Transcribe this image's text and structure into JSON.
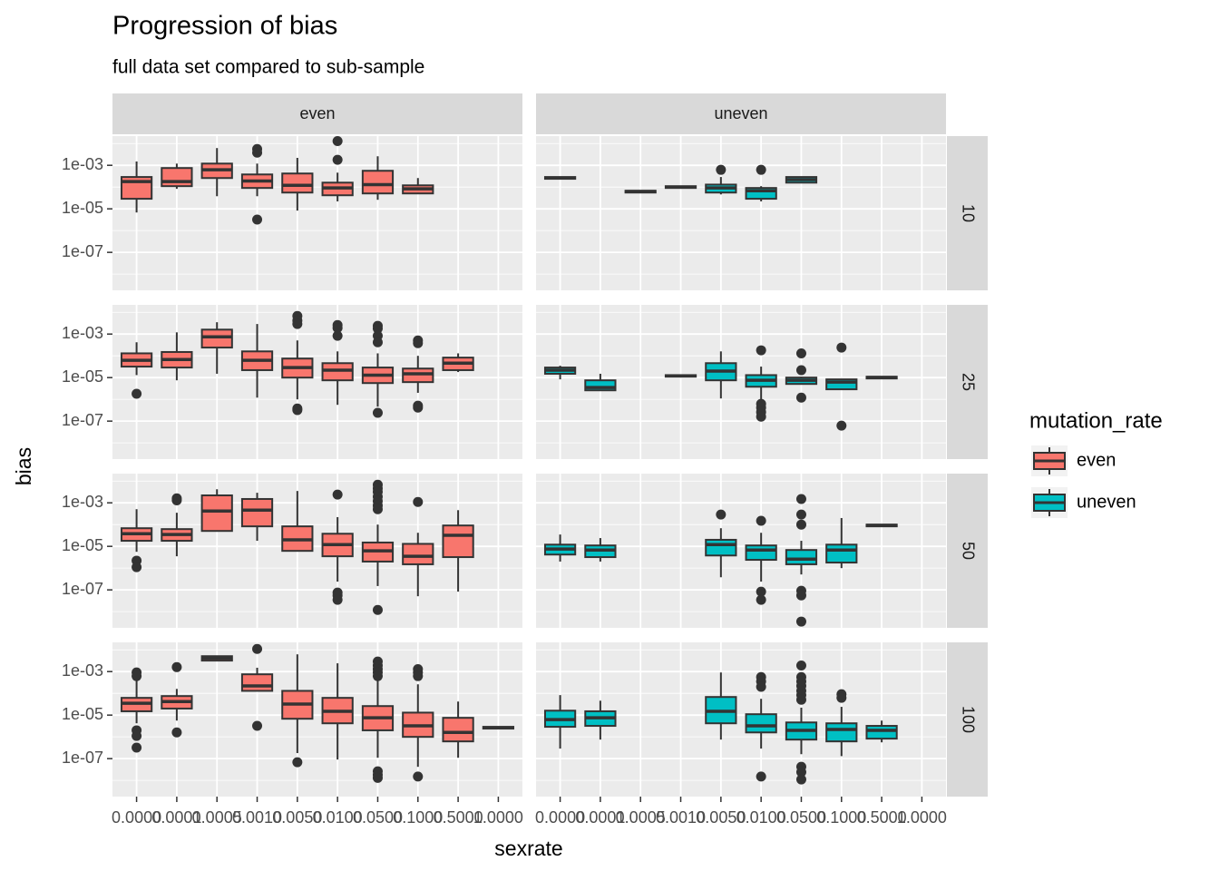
{
  "chart_data": {
    "type": "boxplot",
    "title": "Progression of bias",
    "subtitle": "full data set compared to sub-sample",
    "xlabel": "sexrate",
    "ylabel": "bias",
    "legend_title": "mutation_rate",
    "legend_position": "right",
    "log_y": true,
    "grid": true,
    "minor_grid": true,
    "categories": [
      "0.0000",
      "0.0001",
      "0.0005",
      "0.0010",
      "0.0050",
      "0.0100",
      "0.0500",
      "0.1000",
      "0.5000",
      "1.0000"
    ],
    "ylim": [
      1.8e-09,
      0.022
    ],
    "yticks": [
      {
        "value": 0.001,
        "label": "1e-03"
      },
      {
        "value": 1e-05,
        "label": "1e-05"
      },
      {
        "value": 1e-07,
        "label": "1e-07"
      }
    ],
    "series": [
      {
        "name": "even",
        "color": "#f8766d"
      },
      {
        "name": "uneven",
        "color": "#00bfc4"
      }
    ],
    "facet_cols": [
      "even",
      "uneven"
    ],
    "facet_rows": [
      {
        "label": "10",
        "panels": [
          [
            {
              "low": 6.8e-06,
              "q1": 2.9e-05,
              "median": 0.00018,
              "q3": 0.00029,
              "high": 0.0015
            },
            {
              "low": 8.3e-05,
              "q1": 0.00011,
              "median": 0.00018,
              "q3": 0.00075,
              "high": 0.0012
            },
            {
              "low": 3.8e-05,
              "q1": 0.00026,
              "median": 0.00062,
              "q3": 0.0012,
              "high": 0.0062
            },
            {
              "low": 3.8e-05,
              "q1": 9.1e-05,
              "median": 0.00019,
              "q3": 0.00038,
              "high": 0.0012,
              "outliers": [
                0.0056,
                0.0038,
                3.2e-06
              ]
            },
            {
              "low": 8.3e-06,
              "q1": 5.6e-05,
              "median": 0.00012,
              "q3": 0.00042,
              "high": 0.0022
            },
            {
              "low": 2.2e-05,
              "q1": 4.2e-05,
              "median": 9.1e-05,
              "q3": 0.00016,
              "high": 0.00046,
              "outliers": [
                0.013,
                0.0018
              ]
            },
            {
              "low": 2.6e-05,
              "q1": 5.1e-05,
              "median": 0.00013,
              "q3": 0.00056,
              "high": 0.0026
            },
            {
              "low": 5.1e-05,
              "q1": 5.1e-05,
              "median": 8.3e-05,
              "q3": 0.00012,
              "high": 0.00026
            },
            null,
            null
          ],
          [
            {
              "low": 0.00024,
              "q1": 0.00024,
              "median": 0.00026,
              "q3": 0.00029,
              "high": 0.00029
            },
            null,
            {
              "low": 5.6e-05,
              "q1": 5.6e-05,
              "median": 6.2e-05,
              "q3": 6.8e-05,
              "high": 6.8e-05
            },
            {
              "low": 9.1e-05,
              "q1": 9.1e-05,
              "median": 0.0001,
              "q3": 0.00011,
              "high": 0.00011
            },
            {
              "low": 4.6e-05,
              "q1": 5.6e-05,
              "median": 9.1e-05,
              "q3": 0.00013,
              "high": 0.00029,
              "outliers": [
                0.00062
              ]
            },
            {
              "low": 2.2e-05,
              "q1": 2.9e-05,
              "median": 6.8e-05,
              "q3": 9.1e-05,
              "high": 0.00011,
              "outliers": [
                0.00062
              ]
            },
            {
              "low": 0.00016,
              "q1": 0.00016,
              "median": 0.00022,
              "q3": 0.00029,
              "high": 0.00029
            },
            null,
            null,
            null
          ]
        ]
      },
      {
        "label": "25",
        "panels": [
          [
            {
              "low": 1.3e-05,
              "q1": 3.2e-05,
              "median": 6.2e-05,
              "q3": 0.00013,
              "high": 0.00042,
              "outliers": [
                1.8e-06
              ]
            },
            {
              "low": 7.5e-06,
              "q1": 2.9e-05,
              "median": 6.8e-05,
              "q3": 0.00015,
              "high": 0.0012
            },
            {
              "low": 1.5e-05,
              "q1": 0.00024,
              "median": 0.00075,
              "q3": 0.0016,
              "high": 0.0035
            },
            {
              "low": 1.2e-06,
              "q1": 2.2e-05,
              "median": 6.2e-05,
              "q3": 0.00016,
              "high": 0.0029
            },
            {
              "low": 1e-06,
              "q1": 1e-05,
              "median": 2.9e-05,
              "q3": 7.5e-05,
              "high": 0.00051,
              "outliers": [
                0.0068,
                0.0042,
                0.0029,
                3.8e-07,
                3.2e-07
              ]
            },
            {
              "low": 5.6e-07,
              "q1": 7.5e-06,
              "median": 2.2e-05,
              "q3": 4.6e-05,
              "high": 0.00016,
              "outliers": [
                0.0026,
                0.0019,
                0.00083
              ]
            },
            {
              "low": 4.6e-07,
              "q1": 5.6e-06,
              "median": 1.3e-05,
              "q3": 2.9e-05,
              "high": 0.00013,
              "outliers": [
                0.0024,
                0.0018,
                0.00083,
                0.00042,
                2.4e-07
              ]
            },
            {
              "low": 2e-06,
              "q1": 6.2e-06,
              "median": 1.5e-05,
              "q3": 2.6e-05,
              "high": 0.0001,
              "outliers": [
                0.00051,
                0.00038,
                5.1e-07,
                4.2e-07
              ]
            },
            {
              "low": 1.8e-05,
              "q1": 2.2e-05,
              "median": 4.6e-05,
              "q3": 8.3e-05,
              "high": 0.00013
            },
            null
          ],
          [
            {
              "low": 8.3e-06,
              "q1": 1.5e-05,
              "median": 2.2e-05,
              "q3": 2.9e-05,
              "high": 3.5e-05
            },
            {
              "low": 2.6e-06,
              "q1": 2.6e-06,
              "median": 3.5e-06,
              "q3": 7.5e-06,
              "high": 1.5e-05
            },
            null,
            {
              "low": 1.1e-05,
              "q1": 1.1e-05,
              "median": 1.2e-05,
              "q3": 1.3e-05,
              "high": 1.3e-05
            },
            {
              "low": 1.1e-06,
              "q1": 7.5e-06,
              "median": 2e-05,
              "q3": 4.6e-05,
              "high": 0.00016
            },
            {
              "low": 1e-06,
              "q1": 3.8e-06,
              "median": 7.5e-06,
              "q3": 1.3e-05,
              "high": 3.2e-05,
              "outliers": [
                0.00018,
                6.2e-07,
                4.2e-07,
                2.6e-07,
                1.6e-07
              ]
            },
            {
              "low": 5.1e-06,
              "q1": 5.1e-06,
              "median": 7.5e-06,
              "q3": 1e-05,
              "high": 1.1e-05,
              "outliers": [
                0.00013,
                2.2e-05,
                1.2e-06
              ]
            },
            {
              "low": 2.9e-06,
              "q1": 2.9e-06,
              "median": 6.2e-06,
              "q3": 8.3e-06,
              "high": 8.3e-06,
              "outliers": [
                0.00024,
                6.2e-08
              ]
            },
            {
              "low": 9.1e-06,
              "q1": 9.1e-06,
              "median": 1e-05,
              "q3": 1.1e-05,
              "high": 1.1e-05
            },
            null
          ]
        ]
      },
      {
        "label": "50",
        "panels": [
          [
            {
              "low": 5.6e-06,
              "q1": 1.8e-05,
              "median": 3.8e-05,
              "q3": 6.8e-05,
              "high": 0.00051,
              "outliers": [
                2.2e-06,
                1.1e-06
              ]
            },
            {
              "low": 3.5e-06,
              "q1": 1.8e-05,
              "median": 3.5e-05,
              "q3": 6.2e-05,
              "high": 0.00035,
              "outliers": [
                0.0016,
                0.0013
              ]
            },
            {
              "low": 5.1e-05,
              "q1": 5.1e-05,
              "median": 0.00042,
              "q3": 0.0022,
              "high": 0.0042
            },
            {
              "low": 1.8e-05,
              "q1": 8.3e-05,
              "median": 0.00046,
              "q3": 0.0015,
              "high": 0.0029
            },
            {
              "low": 6.2e-06,
              "q1": 6.2e-06,
              "median": 2e-05,
              "q3": 8.3e-05,
              "high": 0.0035
            },
            {
              "low": 2.4e-07,
              "q1": 3.5e-06,
              "median": 1.2e-05,
              "q3": 3.8e-05,
              "high": 0.00022,
              "outliers": [
                0.0024,
                7.5e-08,
                5.6e-08,
                3.5e-08
              ]
            },
            {
              "low": 1.5e-07,
              "q1": 2e-06,
              "median": 6.2e-06,
              "q3": 1.5e-05,
              "high": 0.0001,
              "outliers": [
                0.0068,
                0.0046,
                0.0032,
                0.0019,
                0.0012,
                0.00075,
                0.00051,
                1.2e-08
              ]
            },
            {
              "low": 5.1e-08,
              "q1": 1.5e-06,
              "median": 3.5e-06,
              "q3": 1.3e-05,
              "high": 4.2e-05,
              "outliers": [
                0.0011
              ]
            },
            {
              "low": 8.3e-08,
              "q1": 3.2e-06,
              "median": 3.2e-05,
              "q3": 9.1e-05,
              "high": 0.00046
            },
            null
          ],
          [
            {
              "low": 2e-06,
              "q1": 4.2e-06,
              "median": 7.5e-06,
              "q3": 1.2e-05,
              "high": 3.5e-05
            },
            {
              "low": 2e-06,
              "q1": 3.2e-06,
              "median": 6.8e-06,
              "q3": 1.1e-05,
              "high": 2.4e-05
            },
            null,
            null,
            {
              "low": 3.8e-07,
              "q1": 3.8e-06,
              "median": 1.2e-05,
              "q3": 2e-05,
              "high": 6.8e-05,
              "outliers": [
                0.00029
              ]
            },
            {
              "low": 2.4e-07,
              "q1": 2.4e-06,
              "median": 6.8e-06,
              "q3": 1.1e-05,
              "high": 4.2e-05,
              "outliers": [
                0.00015,
                8.3e-08,
                3.5e-08
              ]
            },
            {
              "low": 5.1e-07,
              "q1": 1.5e-06,
              "median": 2.6e-06,
              "q3": 6.8e-06,
              "high": 1.8e-05,
              "outliers": [
                0.0015,
                0.00029,
                0.0001,
                9.1e-08,
                5.6e-08,
                3.5e-09
              ]
            },
            {
              "low": 1e-06,
              "q1": 1.8e-06,
              "median": 6.8e-06,
              "q3": 1.2e-05,
              "high": 0.0002
            },
            {
              "low": 8.3e-05,
              "q1": 8.3e-05,
              "median": 9.1e-05,
              "q3": 0.0001,
              "high": 0.0001
            },
            null
          ]
        ]
      },
      {
        "label": "100",
        "panels": [
          [
            {
              "low": 4.2e-06,
              "q1": 1.5e-05,
              "median": 3.5e-05,
              "q3": 6.2e-05,
              "high": 0.00038,
              "outliers": [
                0.00091,
                0.00062,
                2e-06,
                1.1e-06,
                3.2e-07
              ]
            },
            {
              "low": 5.6e-06,
              "q1": 2e-05,
              "median": 4.2e-05,
              "q3": 7.5e-05,
              "high": 0.00016,
              "outliers": [
                0.0016,
                1.6e-06
              ]
            },
            {
              "low": 0.0032,
              "q1": 0.0032,
              "median": 0.0042,
              "q3": 0.0051,
              "high": 0.0051
            },
            {
              "low": 0.00013,
              "q1": 0.00013,
              "median": 0.00022,
              "q3": 0.00075,
              "high": 0.0015,
              "outliers": [
                0.011,
                3.2e-06
              ]
            },
            {
              "low": 1.8e-07,
              "q1": 6.8e-06,
              "median": 3.2e-05,
              "q3": 0.00013,
              "high": 0.0062,
              "outliers": [
                6.8e-08
              ]
            },
            {
              "low": 9.1e-08,
              "q1": 4.2e-06,
              "median": 1.5e-05,
              "q3": 6.2e-05,
              "high": 0.0024
            },
            {
              "low": 1.1e-07,
              "q1": 2e-06,
              "median": 7.5e-06,
              "q3": 2.6e-05,
              "high": 0.00042,
              "outliers": [
                0.0029,
                0.0019,
                0.0013,
                0.00091,
                0.00062,
                2.6e-08,
                1.8e-08,
                1.3e-08
              ]
            },
            {
              "low": 4.2e-08,
              "q1": 1e-06,
              "median": 3.2e-06,
              "q3": 1.3e-05,
              "high": 0.00026,
              "outliers": [
                0.0013,
                0.00091,
                0.00062,
                1.5e-08
              ]
            },
            {
              "low": 1.1e-07,
              "q1": 6.2e-07,
              "median": 1.6e-06,
              "q3": 7.5e-06,
              "high": 4.2e-05
            },
            {
              "low": 2.4e-06,
              "q1": 2.4e-06,
              "median": 2.6e-06,
              "q3": 2.9e-06,
              "high": 2.9e-06
            }
          ],
          [
            {
              "low": 2.9e-07,
              "q1": 2.9e-06,
              "median": 6.2e-06,
              "q3": 1.6e-05,
              "high": 8.3e-05
            },
            {
              "low": 7.5e-07,
              "q1": 3.2e-06,
              "median": 7.5e-06,
              "q3": 1.5e-05,
              "high": 4.6e-05
            },
            null,
            null,
            {
              "low": 7.5e-07,
              "q1": 4.2e-06,
              "median": 1.5e-05,
              "q3": 6.8e-05,
              "high": 0.00091
            },
            {
              "low": 2.9e-07,
              "q1": 1.6e-06,
              "median": 3.2e-06,
              "q3": 1.1e-05,
              "high": 5.6e-05,
              "outliers": [
                0.00056,
                0.00035,
                0.0002,
                1.5e-08
              ]
            },
            {
              "low": 1.6e-07,
              "q1": 7.5e-07,
              "median": 2e-06,
              "q3": 4.6e-06,
              "high": 2.2e-05,
              "outliers": [
                0.0019,
                0.00056,
                0.00035,
                0.00022,
                0.00013,
                8.3e-05,
                5.1e-05,
                4.2e-08,
                2.4e-08,
                1.1e-08
              ]
            },
            {
              "low": 1.3e-07,
              "q1": 6.2e-07,
              "median": 2.2e-06,
              "q3": 4.2e-06,
              "high": 2.4e-05,
              "outliers": [
                9.1e-05,
                6.2e-05
              ]
            },
            {
              "low": 5.6e-07,
              "q1": 8.3e-07,
              "median": 2e-06,
              "q3": 3.2e-06,
              "high": 5.6e-06
            },
            null
          ]
        ]
      }
    ]
  }
}
